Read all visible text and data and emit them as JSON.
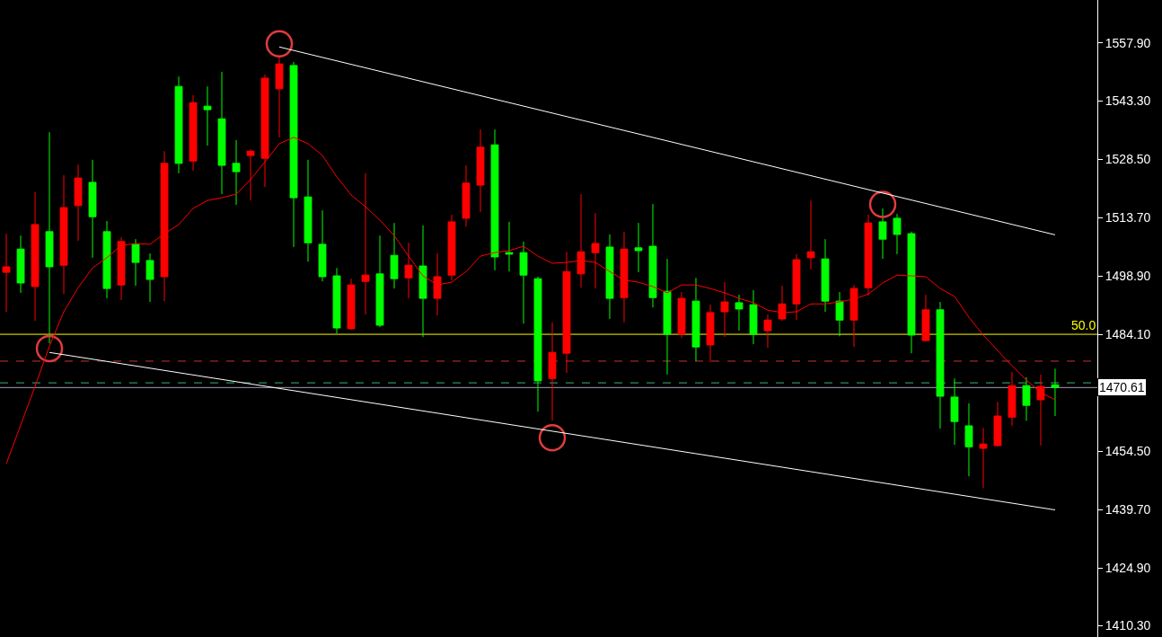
{
  "chart_data": {
    "type": "candlestick",
    "categories": [
      null,
      null,
      null,
      null,
      null,
      null,
      null,
      null,
      null,
      null,
      null,
      null,
      null,
      null,
      null,
      null,
      null,
      null,
      null,
      null,
      null,
      null,
      null,
      null,
      null,
      null,
      null,
      null,
      null,
      null,
      null,
      null,
      null,
      null,
      null,
      null,
      null,
      null,
      null,
      null,
      null,
      null,
      null,
      null,
      null,
      null,
      null,
      null,
      null,
      null,
      null,
      null,
      null,
      null,
      null,
      null,
      null,
      null,
      null,
      null,
      null,
      null,
      null,
      null,
      null,
      null,
      null,
      null,
      null,
      null,
      null,
      null,
      null,
      null
    ],
    "ohlc": [
      [
        1499.8,
        1509.6,
        1489.8,
        1501.2
      ],
      [
        1505.7,
        1509.1,
        1494.6,
        1497.1
      ],
      [
        1496.2,
        1520.1,
        1487.5,
        1511.9
      ],
      [
        1510.1,
        1535.3,
        1481.8,
        1501.2
      ],
      [
        1501.6,
        1524.4,
        1494.3,
        1516.2
      ],
      [
        1516.7,
        1527.1,
        1507.8,
        1523.7
      ],
      [
        1522.6,
        1528.3,
        1503.5,
        1513.9
      ],
      [
        1510.1,
        1512.8,
        1493.2,
        1495.7
      ],
      [
        1496.6,
        1508.7,
        1492.8,
        1507.6
      ],
      [
        1506.9,
        1508.2,
        1496.4,
        1502.3
      ],
      [
        1502.8,
        1504.6,
        1492.3,
        1498.0
      ],
      [
        1498.7,
        1530.5,
        1492.5,
        1527.4
      ],
      [
        1546.9,
        1549.4,
        1524.9,
        1527.4
      ],
      [
        1528.0,
        1544.7,
        1525.5,
        1542.8
      ],
      [
        1541.9,
        1546.9,
        1531.9,
        1541.0
      ],
      [
        1538.7,
        1550.6,
        1519.6,
        1526.9
      ],
      [
        1527.4,
        1533.3,
        1516.9,
        1525.3
      ],
      [
        1529.4,
        1531.0,
        1518.0,
        1530.5
      ],
      [
        1528.7,
        1549.9,
        1521.4,
        1549.0
      ],
      [
        1546.3,
        1554.5,
        1534.0,
        1552.6
      ],
      [
        1552.2,
        1553.1,
        1506.2,
        1518.7
      ],
      [
        1518.9,
        1528.3,
        1502.5,
        1507.3
      ],
      [
        1506.9,
        1515.5,
        1497.5,
        1498.7
      ],
      [
        1498.9,
        1500.9,
        1484.3,
        1485.7
      ],
      [
        1485.5,
        1498.2,
        1485.2,
        1496.6
      ],
      [
        1497.5,
        1524.9,
        1489.1,
        1499.1
      ],
      [
        1499.4,
        1509.1,
        1485.9,
        1486.4
      ],
      [
        1504.1,
        1512.3,
        1495.7,
        1498.2
      ],
      [
        1498.4,
        1507.3,
        1493.2,
        1501.6
      ],
      [
        1501.4,
        1511.7,
        1483.4,
        1493.2
      ],
      [
        1493.2,
        1504.6,
        1488.9,
        1498.7
      ],
      [
        1499.1,
        1514.4,
        1497.8,
        1512.6
      ],
      [
        1513.5,
        1526.9,
        1511.4,
        1522.4
      ],
      [
        1521.9,
        1536.0,
        1515.1,
        1531.5
      ],
      [
        1532.1,
        1536.0,
        1500.3,
        1503.7
      ],
      [
        1504.8,
        1512.6,
        1500.0,
        1504.4
      ],
      [
        1504.8,
        1507.6,
        1486.8,
        1499.1
      ],
      [
        1498.2,
        1498.7,
        1464.5,
        1472.3
      ],
      [
        1472.9,
        1487.1,
        1462.2,
        1479.5
      ],
      [
        1479.3,
        1505.0,
        1474.3,
        1500.0
      ],
      [
        1499.4,
        1519.6,
        1495.9,
        1505.0
      ],
      [
        1504.8,
        1514.8,
        1495.7,
        1507.1
      ],
      [
        1506.2,
        1509.4,
        1488.0,
        1493.2
      ],
      [
        1493.4,
        1510.1,
        1487.1,
        1505.7
      ],
      [
        1506.0,
        1512.3,
        1499.8,
        1505.3
      ],
      [
        1506.4,
        1517.1,
        1490.9,
        1493.4
      ],
      [
        1495.0,
        1503.2,
        1473.9,
        1484.1
      ],
      [
        1484.1,
        1494.8,
        1483.2,
        1493.2
      ],
      [
        1492.5,
        1498.4,
        1477.3,
        1480.9
      ],
      [
        1481.4,
        1491.6,
        1477.0,
        1489.6
      ],
      [
        1489.8,
        1497.3,
        1483.4,
        1492.3
      ],
      [
        1492.1,
        1494.1,
        1485.0,
        1490.5
      ],
      [
        1491.6,
        1495.3,
        1481.6,
        1484.1
      ],
      [
        1485.0,
        1489.1,
        1480.7,
        1487.7
      ],
      [
        1488.0,
        1496.4,
        1487.5,
        1491.8
      ],
      [
        1491.8,
        1504.4,
        1487.7,
        1503.0
      ],
      [
        1503.5,
        1518.0,
        1500.5,
        1505.0
      ],
      [
        1503.2,
        1508.2,
        1489.8,
        1492.5
      ],
      [
        1492.5,
        1494.8,
        1483.6,
        1487.7
      ],
      [
        1487.7,
        1496.6,
        1480.9,
        1495.7
      ],
      [
        1495.9,
        1514.4,
        1493.9,
        1512.3
      ],
      [
        1512.6,
        1516.0,
        1503.2,
        1508.2
      ],
      [
        1513.5,
        1514.6,
        1504.4,
        1509.4
      ],
      [
        1509.6,
        1510.1,
        1479.3,
        1483.9
      ],
      [
        1482.5,
        1494.1,
        1482.3,
        1490.3
      ],
      [
        1490.3,
        1492.3,
        1460.2,
        1468.4
      ],
      [
        1468.2,
        1472.9,
        1456.1,
        1462.0
      ],
      [
        1460.9,
        1466.6,
        1448.1,
        1455.6
      ],
      [
        1455.2,
        1460.4,
        1445.2,
        1456.3
      ],
      [
        1455.9,
        1467.0,
        1455.6,
        1463.4
      ],
      [
        1463.1,
        1474.5,
        1460.9,
        1471.1
      ],
      [
        1471.1,
        1473.2,
        1462.2,
        1466.1
      ],
      [
        1467.5,
        1473.9,
        1455.9,
        1470.9
      ],
      [
        1471.3,
        1475.4,
        1463.4,
        1470.61
      ]
    ],
    "colors": [
      "#ff0000",
      "#00ff00",
      "#ff0000",
      "#00ff00",
      "#ff0000",
      "#ff0000",
      "#00ff00",
      "#00ff00",
      "#ff0000",
      "#00ff00",
      "#00ff00",
      "#ff0000",
      "#00ff00",
      "#ff0000",
      "#00ff00",
      "#00ff00",
      "#00ff00",
      "#ff0000",
      "#ff0000",
      "#ff0000",
      "#00ff00",
      "#00ff00",
      "#00ff00",
      "#00ff00",
      "#ff0000",
      "#ff0000",
      "#00ff00",
      "#00ff00",
      "#ff0000",
      "#00ff00",
      "#ff0000",
      "#ff0000",
      "#ff0000",
      "#ff0000",
      "#00ff00",
      "#00ff00",
      "#00ff00",
      "#00ff00",
      "#ff0000",
      "#ff0000",
      "#ff0000",
      "#ff0000",
      "#00ff00",
      "#ff0000",
      "#00ff00",
      "#00ff00",
      "#00ff00",
      "#ff0000",
      "#00ff00",
      "#ff0000",
      "#ff0000",
      "#00ff00",
      "#00ff00",
      "#ff0000",
      "#ff0000",
      "#ff0000",
      "#ff0000",
      "#00ff00",
      "#00ff00",
      "#ff0000",
      "#ff0000",
      "#00ff00",
      "#00ff00",
      "#00ff00",
      "#ff0000",
      "#00ff00",
      "#00ff00",
      "#00ff00",
      "#ff0000",
      "#ff0000",
      "#ff0000",
      "#00ff00",
      "#ff0000",
      "#00ff00"
    ],
    "series": [
      {
        "type": "line",
        "color": "#ff0000",
        "values": [
          1451.3,
          1461.1,
          1470.9,
          1481.1,
          1489.8,
          1495.9,
          1500.9,
          1503.5,
          1506.6,
          1507.1,
          1506.9,
          1509.6,
          1511.9,
          1516.0,
          1518.0,
          1518.7,
          1519.6,
          1523.3,
          1527.8,
          1532.4,
          1534.0,
          1532.4,
          1529.4,
          1524.0,
          1519.4,
          1516.4,
          1513.0,
          1509.1,
          1503.9,
          1498.9,
          1496.6,
          1497.3,
          1500.0,
          1503.9,
          1504.8,
          1505.3,
          1506.4,
          1503.9,
          1502.1,
          1502.3,
          1502.8,
          1502.3,
          1500.0,
          1497.8,
          1497.3,
          1496.2,
          1494.6,
          1496.6,
          1496.6,
          1495.7,
          1494.6,
          1493.2,
          1492.1,
          1490.2,
          1489.6,
          1489.8,
          1491.8,
          1491.8,
          1492.3,
          1493.0,
          1494.3,
          1497.1,
          1499.1,
          1498.9,
          1498.7,
          1495.7,
          1493.7,
          1488.4,
          1483.9,
          1480.0,
          1476.1,
          1472.5,
          1469.3,
          1467.5
        ]
      },
      {
        "type": "line",
        "color": "#ffffff",
        "values": [
          null,
          null,
          null,
          null,
          null,
          null,
          null,
          null,
          null,
          null,
          null,
          null,
          null,
          null,
          null,
          null,
          null,
          null,
          null,
          1556.9,
          null,
          null,
          null,
          null,
          null,
          null,
          null,
          null,
          null,
          null,
          null,
          null,
          null,
          null,
          null,
          null,
          null,
          null,
          null,
          null,
          null,
          null,
          null,
          null,
          null,
          null,
          null,
          null,
          null,
          null,
          null,
          null,
          null,
          null,
          null,
          null,
          null,
          null,
          null,
          null,
          null,
          null,
          null,
          null,
          null,
          null,
          null,
          null,
          null,
          null,
          null,
          null,
          null,
          1509.3
        ]
      },
      {
        "type": "line",
        "color": "#ffffff",
        "values": [
          null,
          null,
          null,
          1479.5,
          null,
          null,
          null,
          null,
          null,
          null,
          null,
          null,
          null,
          null,
          null,
          null,
          null,
          null,
          null,
          null,
          null,
          null,
          null,
          null,
          null,
          null,
          null,
          null,
          null,
          null,
          null,
          null,
          null,
          null,
          null,
          null,
          null,
          null,
          null,
          null,
          null,
          null,
          null,
          null,
          null,
          null,
          null,
          null,
          null,
          null,
          null,
          null,
          null,
          null,
          null,
          null,
          null,
          null,
          null,
          null,
          null,
          null,
          null,
          null,
          null,
          null,
          null,
          null,
          null,
          null,
          null,
          null,
          null,
          1439.6
        ]
      },
      {
        "type": "scatter",
        "color": "#e03c3c",
        "marker": "circle",
        "values": [
          null,
          null,
          null,
          1480.5,
          null,
          null,
          null,
          null,
          null,
          null,
          null,
          null,
          null,
          null,
          null,
          null,
          null,
          null,
          null,
          1557.7,
          null,
          null,
          null,
          null,
          null,
          null,
          null,
          null,
          null,
          null,
          null,
          null,
          null,
          null,
          null,
          null,
          null,
          null,
          1457.9,
          null,
          null,
          null,
          null,
          null,
          null,
          null,
          null,
          null,
          null,
          null,
          null,
          null,
          null,
          null,
          null,
          null,
          null,
          null,
          null,
          null,
          null,
          1517.0,
          null,
          null,
          null,
          null,
          null,
          null,
          null,
          null,
          null,
          null,
          null,
          null
        ]
      }
    ],
    "ylim": [
      1407.4,
      1568.8
    ],
    "yticks": [
      {
        "value": 1410.3,
        "label": "1410.30"
      },
      {
        "value": 1424.9,
        "label": "1424.90"
      },
      {
        "value": 1439.7,
        "label": "1439.70"
      },
      {
        "value": 1454.5,
        "label": "1454.50"
      },
      {
        "value": 1484.1,
        "label": "1484.10"
      },
      {
        "value": 1498.9,
        "label": "1498.90"
      },
      {
        "value": 1513.7,
        "label": "1513.70"
      },
      {
        "value": 1528.5,
        "label": "1528.50"
      },
      {
        "value": 1543.3,
        "label": "1543.30"
      },
      {
        "value": 1557.9,
        "label": "1557.90"
      }
    ],
    "annotations": [
      {
        "text": "50.0",
        "y": 1484.1
      }
    ],
    "ref_lines": [
      {
        "axis": "y",
        "value": 1484.1,
        "color": "#ffff00",
        "line_style": "solid"
      },
      {
        "axis": "y",
        "value": 1477.3,
        "color": "#c83232",
        "line_style": "dashed"
      },
      {
        "axis": "y",
        "value": 1471.8,
        "color": "#3cb371",
        "line_style": "dashed"
      },
      {
        "axis": "y",
        "value": 1470.61,
        "label": "1470.61",
        "color": "#a0a0b4",
        "line_style": "solid"
      }
    ],
    "tick_labels": "y"
  }
}
